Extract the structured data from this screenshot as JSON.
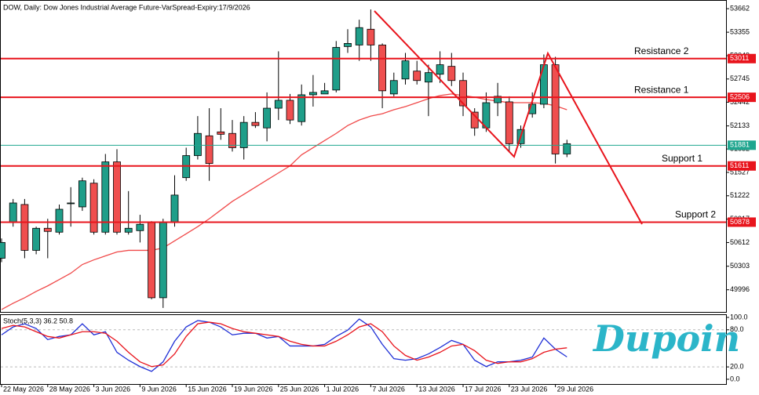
{
  "chart_data": [
    {
      "type": "candlestick",
      "title": "DOW, Daily: Dow Jones Industrial Average Future-VarSpread-Expiry:17/9/2026",
      "categories": [
        "22 May 2026",
        null,
        null,
        null,
        "28 May 2026",
        null,
        null,
        null,
        "3 Jun 2026",
        null,
        null,
        null,
        "9 Jun 2026",
        null,
        null,
        null,
        "15 Jun 2026",
        null,
        null,
        null,
        "19 Jun 2026",
        null,
        null,
        null,
        "25 Jun 2026",
        null,
        null,
        null,
        "1 Jul 2026",
        null,
        null,
        null,
        "7 Jul 2026",
        null,
        null,
        null,
        "13 Jul 2026",
        null,
        null,
        null,
        "17 Jul 2026",
        null,
        null,
        null,
        "23 Jul 2026",
        null,
        null,
        null,
        "29 Jul 2026",
        null
      ],
      "open": [
        50407,
        50871,
        51108,
        50510,
        50798,
        50747,
        51128,
        51077,
        51386,
        50747,
        51664,
        50747,
        50767,
        50871,
        49892,
        50871,
        51458,
        51746,
        52004,
        52055,
        52035,
        51849,
        52179,
        52107,
        52364,
        52467,
        52189,
        52539,
        52550,
        52601,
        53168,
        53188,
        53394,
        53188,
        52550,
        52745,
        52848,
        52705,
        52807,
        52910,
        52725,
        52313,
        52107,
        52436,
        52447,
        51901,
        52292,
        52416,
        52931,
        51767
      ],
      "high": [
        50665,
        51180,
        51180,
        50819,
        50922,
        51108,
        51334,
        51458,
        51437,
        51767,
        51829,
        51283,
        50974,
        50891,
        50922,
        51489,
        51849,
        52261,
        52364,
        52364,
        52210,
        52261,
        52313,
        52570,
        53106,
        52550,
        52673,
        52797,
        52694,
        53240,
        53394,
        53518,
        53652,
        53209,
        52828,
        53085,
        52982,
        52931,
        53106,
        53085,
        52828,
        52364,
        52570,
        52694,
        52519,
        52138,
        52570,
        53065,
        53034,
        51952
      ],
      "low": [
        50356,
        50819,
        50407,
        50459,
        50407,
        50716,
        50819,
        51025,
        50716,
        50716,
        50716,
        50716,
        50613,
        49872,
        49759,
        50819,
        51417,
        51695,
        51417,
        51952,
        51798,
        51695,
        52107,
        51932,
        52210,
        52158,
        52138,
        52385,
        52550,
        52570,
        53085,
        52982,
        52982,
        52364,
        52519,
        52673,
        52673,
        52261,
        52694,
        52653,
        52261,
        52004,
        52055,
        52261,
        51798,
        51849,
        52241,
        52364,
        51643,
        51726
      ],
      "close": [
        50613,
        51128,
        50510,
        50798,
        50757,
        51046,
        51128,
        51417,
        50747,
        51664,
        50747,
        50798,
        50850,
        49892,
        50871,
        51231,
        51746,
        52035,
        51643,
        52024,
        51849,
        52179,
        52138,
        52364,
        52467,
        52210,
        52539,
        52570,
        52591,
        53157,
        53209,
        53415,
        53188,
        52591,
        52725,
        52982,
        52725,
        52828,
        52931,
        52725,
        52395,
        52107,
        52436,
        52519,
        51901,
        52086,
        52416,
        52931,
        51767,
        51901
      ],
      "up_color": "#1f9e89",
      "down_color": "#ef4f4f",
      "series": [
        {
          "color": "#f04a4a",
          "values": [
            49738,
            49820,
            49892,
            49975,
            50047,
            50129,
            50212,
            50325,
            50386,
            50438,
            50489,
            50510,
            50510,
            50510,
            50541,
            50634,
            50726,
            50819,
            50922,
            51035,
            51149,
            51241,
            51334,
            51427,
            51520,
            51612,
            51756,
            51849,
            51942,
            52035,
            52138,
            52210,
            52261,
            52292,
            52344,
            52385,
            52436,
            52488,
            52529,
            52550,
            52529,
            52508,
            52477,
            52457,
            52436,
            52436,
            52436,
            52426,
            52395,
            52344
          ]
        }
      ],
      "levels": [
        {
          "name": "Resistance 2",
          "value": 53011,
          "label": "53011",
          "color": "#e8141c"
        },
        {
          "name": "Resistance 1",
          "value": 52506,
          "label": "52506",
          "color": "#e8141c"
        },
        {
          "value": 51881,
          "label": "51881",
          "color": "#1fa68f"
        },
        {
          "name": "Support 1",
          "value": 51611,
          "label": "51611",
          "color": "#e8141c"
        },
        {
          "name": "Support 2",
          "value": 50878,
          "label": "50878",
          "color": "#e8141c"
        }
      ],
      "ylim": [
        49707,
        53765
      ],
      "yticks": [
        53662,
        53355,
        53049,
        52745,
        52442,
        52133,
        51832,
        51527,
        51222,
        50917,
        50612,
        50303,
        49996
      ]
    },
    {
      "type": "line",
      "title": "Stoch(5,3,3) 36.2 50.8",
      "series": [
        {
          "color": "#1f2fd6",
          "values": [
            71.8,
            84.6,
            89.7,
            82.1,
            64.1,
            69.2,
            71.8,
            89.7,
            71.8,
            76.9,
            43.6,
            30.8,
            20.5,
            12.8,
            28.2,
            61.5,
            84.6,
            94.9,
            92.3,
            84.6,
            71.8,
            74.4,
            74.4,
            66.7,
            69.2,
            53.8,
            53.8,
            53.8,
            56.4,
            69.2,
            79.5,
            97.4,
            84.6,
            56.4,
            33.3,
            30.8,
            33.3,
            41.0,
            51.3,
            62.8,
            56.4,
            30.8,
            20.5,
            28.2,
            28.2,
            30.8,
            35.9,
            66.7,
            48.7,
            36.2
          ]
        },
        {
          "color": "#e8141c",
          "values": [
            82.1,
            87.2,
            84.6,
            76.9,
            69.2,
            66.7,
            71.8,
            76.9,
            76.9,
            74.4,
            61.5,
            43.6,
            28.2,
            20.5,
            23.1,
            41.0,
            69.2,
            89.7,
            92.3,
            89.7,
            82.1,
            76.9,
            74.4,
            71.8,
            69.2,
            61.5,
            56.4,
            53.8,
            53.8,
            61.5,
            71.8,
            84.6,
            89.7,
            76.9,
            53.8,
            38.5,
            30.8,
            35.9,
            43.6,
            53.8,
            56.4,
            46.2,
            30.8,
            25.6,
            28.2,
            28.2,
            33.3,
            43.6,
            48.7,
            50.8
          ]
        }
      ],
      "ylim": [
        -7.7,
        103.8
      ],
      "yticks": [
        {
          "value": 100,
          "label": "100.0"
        },
        {
          "value": 80,
          "label": "80.0"
        },
        {
          "value": 20,
          "label": "20.0"
        },
        {
          "value": 0,
          "label": "0.0"
        }
      ]
    }
  ],
  "logo": "Dupoin"
}
